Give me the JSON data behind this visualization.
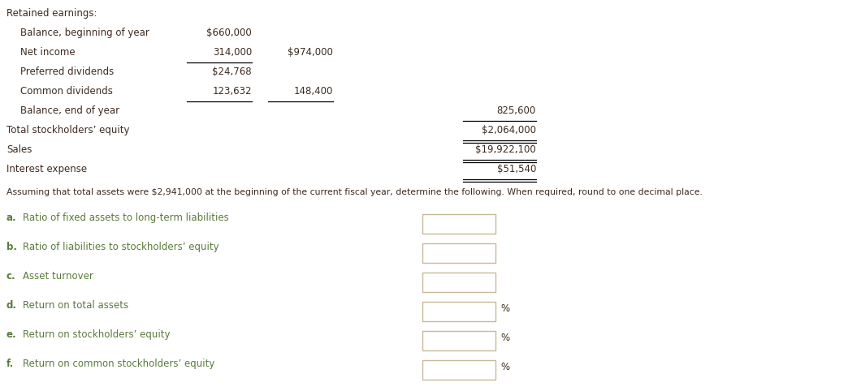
{
  "bg_color": "#ffffff",
  "text_color_dark": "#3d2b1f",
  "text_color_green": "#5a7a3a",
  "box_edge_color": "#c8b89a",
  "title": "Retained earnings:",
  "rows": [
    {
      "label": "Balance, beginning of year",
      "col1": "$660,000",
      "col2": "",
      "col3": "",
      "indent": 1,
      "ul_after_col1": false,
      "ul_after_col2": false,
      "ul_after_col3": false
    },
    {
      "label": "Net income",
      "col1": "314,000",
      "col2": "$974,000",
      "col3": "",
      "indent": 1,
      "ul_after_col1": true,
      "ul_after_col2": false,
      "ul_after_col3": false
    },
    {
      "label": "Preferred dividends",
      "col1": "$24,768",
      "col2": "",
      "col3": "",
      "indent": 1,
      "ul_after_col1": false,
      "ul_after_col2": false,
      "ul_after_col3": false
    },
    {
      "label": "Common dividends",
      "col1": "123,632",
      "col2": "148,400",
      "col3": "",
      "indent": 1,
      "ul_after_col1": true,
      "ul_after_col2": true,
      "ul_after_col3": false
    },
    {
      "label": "Balance, end of year",
      "col1": "",
      "col2": "",
      "col3": "825,600",
      "indent": 1,
      "ul_after_col1": false,
      "ul_after_col2": false,
      "ul_after_col3": true,
      "double3": false
    },
    {
      "label": "Total stockholders’ equity",
      "col1": "",
      "col2": "",
      "col3": "$2,064,000",
      "indent": 0,
      "ul_after_col1": false,
      "ul_after_col2": false,
      "ul_after_col3": true,
      "double3": true
    },
    {
      "label": "Sales",
      "col1": "",
      "col2": "",
      "col3": "$19,922,100",
      "indent": 0,
      "ul_after_col1": false,
      "ul_after_col2": false,
      "ul_after_col3": true,
      "double3": true
    },
    {
      "label": "Interest expense",
      "col1": "",
      "col2": "",
      "col3": "$51,540",
      "indent": 0,
      "ul_after_col1": false,
      "ul_after_col2": false,
      "ul_after_col3": true,
      "double3": true
    }
  ],
  "instruction": "Assuming that total assets were $2,941,000 at the beginning of the current fiscal year, determine the following. When required, round to one decimal place.",
  "questions": [
    {
      "letter": "a.",
      "text": "Ratio of fixed assets to long-term liabilities",
      "has_percent": false
    },
    {
      "letter": "b.",
      "text": "Ratio of liabilities to stockholders’ equity",
      "has_percent": false
    },
    {
      "letter": "c.",
      "text": "Asset turnover",
      "has_percent": false
    },
    {
      "letter": "d.",
      "text": "Return on total assets",
      "has_percent": true
    },
    {
      "letter": "e.",
      "text": "Return on stockholders’ equity",
      "has_percent": true
    },
    {
      "letter": "f.",
      "text": "Return on common stockholders’ equity",
      "has_percent": true
    }
  ]
}
